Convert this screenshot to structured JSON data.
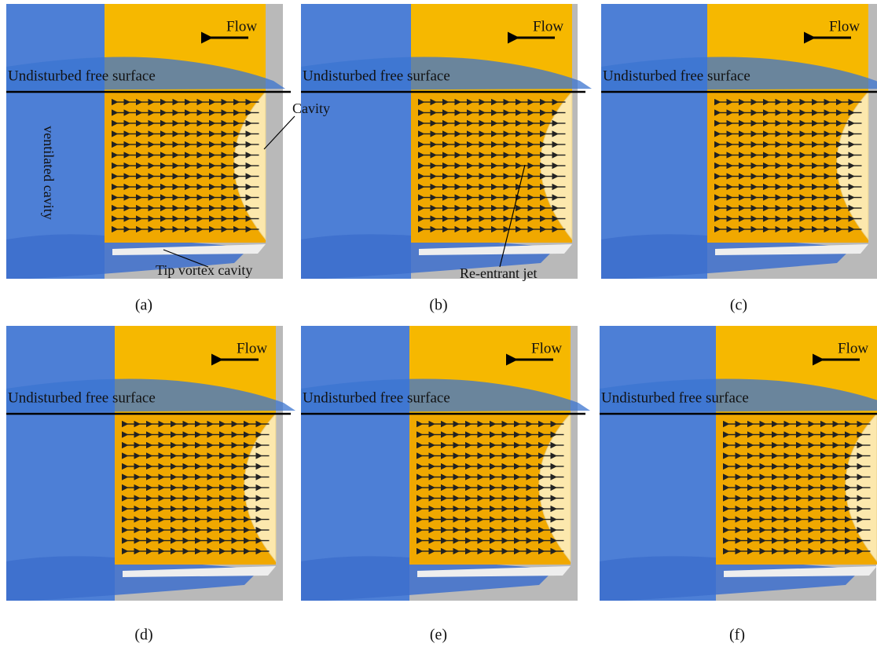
{
  "panels": [
    {
      "label": "(a)",
      "flow": "Flow",
      "surface": "Undisturbed free surface",
      "annotations": [
        "Cavity",
        "ventilated cavity",
        "Tip vortex cavity"
      ]
    },
    {
      "label": "(b)",
      "flow": "Flow",
      "surface": "Undisturbed free surface",
      "annotations": [
        "Re-entrant jet"
      ]
    },
    {
      "label": "(c)",
      "flow": "Flow",
      "surface": "Undisturbed free surface"
    },
    {
      "label": "(d)",
      "flow": "Flow",
      "surface": "Undisturbed free surface"
    },
    {
      "label": "(e)",
      "flow": "Flow",
      "surface": "Undisturbed free surface"
    },
    {
      "label": "(f)",
      "flow": "Flow",
      "surface": "Undisturbed free surface"
    }
  ]
}
